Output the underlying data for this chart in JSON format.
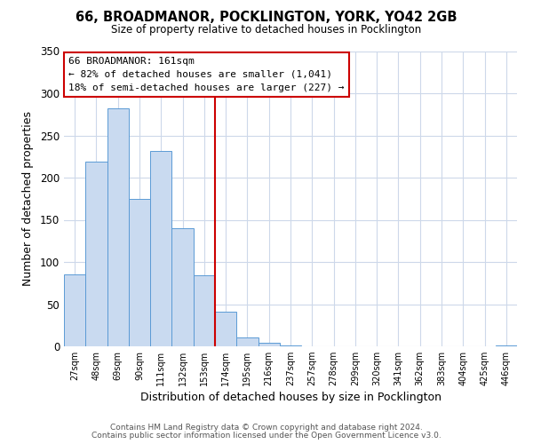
{
  "title": "66, BROADMANOR, POCKLINGTON, YORK, YO42 2GB",
  "subtitle": "Size of property relative to detached houses in Pocklington",
  "xlabel": "Distribution of detached houses by size in Pocklington",
  "ylabel": "Number of detached properties",
  "bar_labels": [
    "27sqm",
    "48sqm",
    "69sqm",
    "90sqm",
    "111sqm",
    "132sqm",
    "153sqm",
    "174sqm",
    "195sqm",
    "216sqm",
    "237sqm",
    "257sqm",
    "278sqm",
    "299sqm",
    "320sqm",
    "341sqm",
    "362sqm",
    "383sqm",
    "404sqm",
    "425sqm",
    "446sqm"
  ],
  "bar_values": [
    85,
    219,
    282,
    175,
    232,
    140,
    84,
    41,
    11,
    4,
    1,
    0,
    0,
    0,
    0,
    0,
    0,
    0,
    0,
    0,
    1
  ],
  "bar_color": "#c9daf0",
  "bar_edge_color": "#5b9bd5",
  "vline_color": "#cc0000",
  "annotation_line1": "66 BROADMANOR: 161sqm",
  "annotation_line2": "← 82% of detached houses are smaller (1,041)",
  "annotation_line3": "18% of semi-detached houses are larger (227) →",
  "annotation_box_color": "#cc0000",
  "ylim": [
    0,
    350
  ],
  "yticks": [
    0,
    50,
    100,
    150,
    200,
    250,
    300,
    350
  ],
  "footer_line1": "Contains HM Land Registry data © Crown copyright and database right 2024.",
  "footer_line2": "Contains public sector information licensed under the Open Government Licence v3.0.",
  "background_color": "#ffffff",
  "grid_color": "#cdd8ea"
}
